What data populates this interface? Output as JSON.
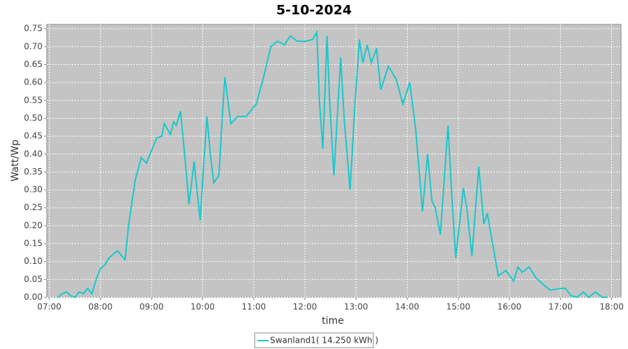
{
  "chart_data": {
    "type": "line",
    "title": "5-10-2024",
    "x_label": "time",
    "y_label": "Watt/Wp",
    "x": [
      "07:10",
      "07:15",
      "07:20",
      "07:25",
      "07:30",
      "07:35",
      "07:40",
      "07:45",
      "07:50",
      "07:55",
      "08:00",
      "08:05",
      "08:10",
      "08:15",
      "08:20",
      "08:29",
      "08:33",
      "08:41",
      "08:48",
      "08:54",
      "09:00",
      "09:06",
      "09:12",
      "09:15",
      "09:22",
      "09:26",
      "09:29",
      "09:34",
      "09:38",
      "09:44",
      "09:50",
      "09:57",
      "10:02",
      "10:05",
      "10:09",
      "10:13",
      "10:19",
      "10:23",
      "10:26",
      "10:33",
      "10:41",
      "10:51",
      "11:03",
      "11:12",
      "11:20",
      "11:28",
      "11:36",
      "11:43",
      "11:51",
      "12:01",
      "12:09",
      "12:14",
      "12:17",
      "12:21",
      "12:26",
      "12:29",
      "12:34",
      "12:42",
      "12:46",
      "12:53",
      "12:59",
      "13:04",
      "13:08",
      "13:13",
      "13:18",
      "13:24",
      "13:29",
      "13:38",
      "13:47",
      "13:55",
      "14:03",
      "14:10",
      "14:18",
      "14:24",
      "14:29",
      "14:33",
      "14:39",
      "14:48",
      "14:52",
      "14:57",
      "15:06",
      "15:10",
      "15:16",
      "15:24",
      "15:30",
      "15:34",
      "15:41",
      "15:47",
      "15:56",
      "16:05",
      "16:10",
      "16:15",
      "16:23",
      "16:31",
      "16:40",
      "16:48",
      "17:00",
      "17:06",
      "17:12",
      "17:19",
      "17:27",
      "17:33",
      "17:41",
      "17:49",
      "17:55"
    ],
    "series": [
      {
        "name": "Swanland1( 14.250 kWh )",
        "color": "#17c9cc",
        "values": [
          0.0,
          0.01,
          0.015,
          0.005,
          0.0,
          0.015,
          0.01,
          0.025,
          0.01,
          0.05,
          0.08,
          0.09,
          0.11,
          0.12,
          0.13,
          0.105,
          0.2,
          0.33,
          0.39,
          0.375,
          0.41,
          0.445,
          0.45,
          0.485,
          0.455,
          0.49,
          0.48,
          0.52,
          0.42,
          0.26,
          0.38,
          0.215,
          0.4,
          0.505,
          0.4,
          0.32,
          0.34,
          0.5,
          0.615,
          0.485,
          0.505,
          0.505,
          0.54,
          0.62,
          0.7,
          0.715,
          0.705,
          0.73,
          0.715,
          0.715,
          0.72,
          0.74,
          0.55,
          0.415,
          0.73,
          0.55,
          0.34,
          0.67,
          0.5,
          0.3,
          0.55,
          0.72,
          0.655,
          0.705,
          0.655,
          0.695,
          0.58,
          0.645,
          0.61,
          0.54,
          0.6,
          0.47,
          0.24,
          0.4,
          0.27,
          0.25,
          0.175,
          0.48,
          0.3,
          0.11,
          0.305,
          0.25,
          0.115,
          0.365,
          0.205,
          0.235,
          0.14,
          0.06,
          0.075,
          0.045,
          0.085,
          0.07,
          0.085,
          0.055,
          0.035,
          0.02,
          0.025,
          0.025,
          0.005,
          0.0,
          0.015,
          0.0,
          0.015,
          0.0,
          0.0
        ]
      }
    ],
    "xlim": [
      "06:57",
      "18:11"
    ],
    "xticks": [
      "07:00",
      "08:00",
      "09:00",
      "10:00",
      "11:00",
      "12:00",
      "13:00",
      "14:00",
      "15:00",
      "16:00",
      "17:00",
      "18:00"
    ],
    "ylim": [
      0,
      0.762
    ],
    "yticks": [
      {
        "value": 0,
        "label": "0.00"
      },
      {
        "value": 0.05,
        "label": "0.05"
      },
      {
        "value": 0.1,
        "label": "0.10"
      },
      {
        "value": 0.15,
        "label": "0.15"
      },
      {
        "value": 0.2,
        "label": "0.20"
      },
      {
        "value": 0.25,
        "label": "0.25"
      },
      {
        "value": 0.3,
        "label": "0.30"
      },
      {
        "value": 0.35,
        "label": "0.35"
      },
      {
        "value": 0.4,
        "label": "0.40"
      },
      {
        "value": 0.45,
        "label": "0.45"
      },
      {
        "value": 0.5,
        "label": "0.50"
      },
      {
        "value": 0.55,
        "label": "0.55"
      },
      {
        "value": 0.6,
        "label": "0.60"
      },
      {
        "value": 0.65,
        "label": "0.65"
      },
      {
        "value": 0.7,
        "label": "0.70"
      },
      {
        "value": 0.75,
        "label": "0.75"
      }
    ],
    "grid": true
  }
}
